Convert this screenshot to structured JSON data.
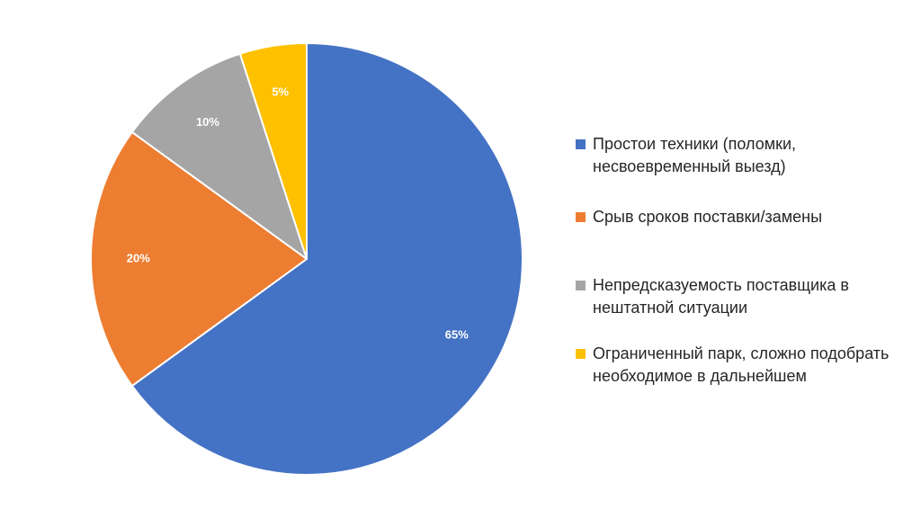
{
  "chart_data": {
    "type": "pie",
    "title": "",
    "start_angle_deg": 0,
    "direction": "clockwise",
    "legend_position": "right",
    "slices": [
      {
        "name": "Простои техники (поломки, несвоевременный выезд)",
        "value": 65,
        "label": "65%",
        "color": "#4472C4"
      },
      {
        "name": "Срыв сроков поставки/замены",
        "value": 20,
        "label": "20%",
        "color": "#ED7D31"
      },
      {
        "name": "Непредсказуемость поставщика в нештатной ситуации",
        "value": 10,
        "label": "10%",
        "color": "#A5A5A5"
      },
      {
        "name": "Ограниченный парк, сложно подобрать необходимое в дальнейшем",
        "value": 5,
        "label": "5%",
        "color": "#FFC000"
      }
    ]
  }
}
